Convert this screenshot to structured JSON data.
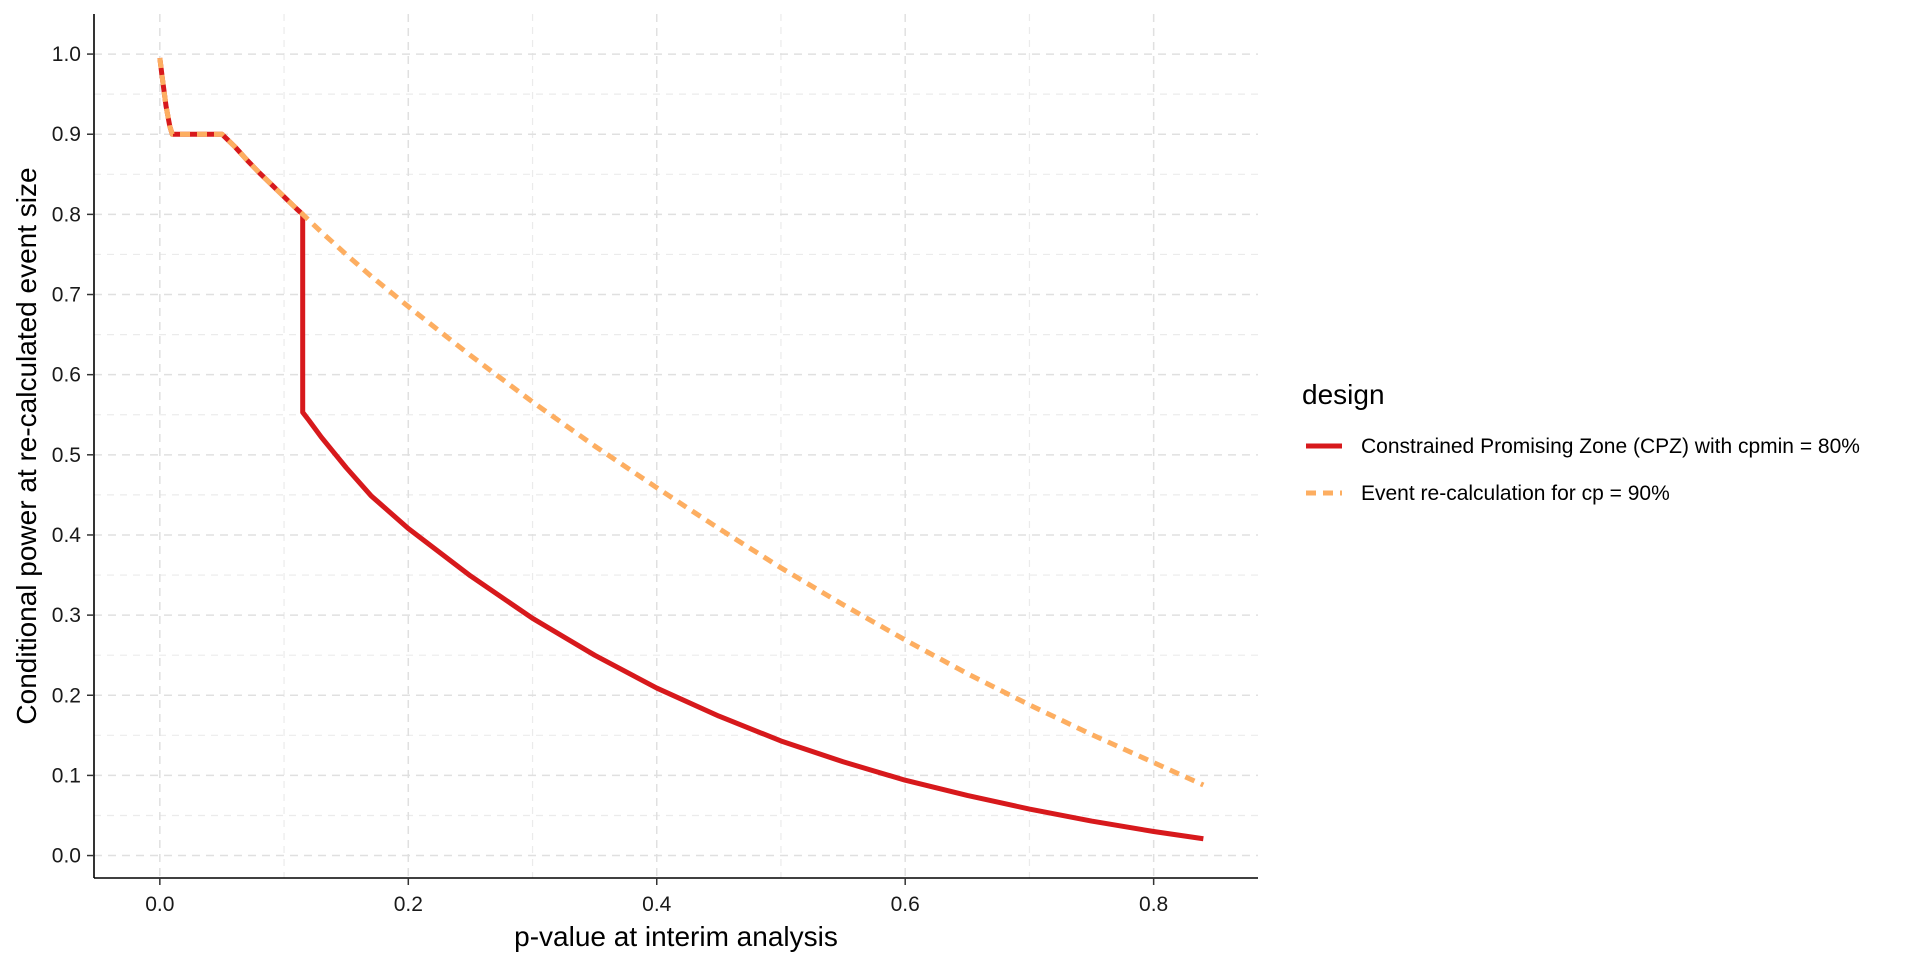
{
  "chart_data": {
    "type": "line",
    "xlabel": "p-value at interim analysis",
    "ylabel": "Conditional power at re-calculated event size",
    "xlim": [
      -0.053,
      0.884
    ],
    "ylim": [
      -0.028,
      1.05
    ],
    "x_ticks": [
      0.0,
      0.2,
      0.4,
      0.6,
      0.8
    ],
    "x_tick_labels": [
      "0.0",
      "0.2",
      "0.4",
      "0.6",
      "0.8"
    ],
    "y_ticks": [
      0.0,
      0.1,
      0.2,
      0.3,
      0.4,
      0.5,
      0.6,
      0.7,
      0.8,
      0.9,
      1.0
    ],
    "y_tick_labels": [
      "0.0",
      "0.1",
      "0.2",
      "0.3",
      "0.4",
      "0.5",
      "0.6",
      "0.7",
      "0.8",
      "0.9",
      "1.0"
    ],
    "grid": true,
    "legend": {
      "title": "design",
      "position": "right",
      "entries": [
        "Constrained Promising Zone (CPZ) with cpmin = 80%",
        "Event re-calculation for cp = 90%"
      ]
    },
    "series": [
      {
        "name": "Constrained Promising Zone (CPZ) with cpmin = 80%",
        "color": "#d7191c",
        "style": "solid",
        "x": [
          0.0,
          0.002,
          0.005,
          0.008,
          0.01,
          0.02,
          0.03,
          0.04,
          0.05,
          0.06,
          0.07,
          0.08,
          0.09,
          0.1,
          0.11,
          0.115,
          0.115,
          0.12,
          0.13,
          0.14,
          0.15,
          0.17,
          0.2,
          0.25,
          0.3,
          0.35,
          0.4,
          0.45,
          0.5,
          0.55,
          0.6,
          0.65,
          0.7,
          0.75,
          0.8,
          0.84
        ],
        "y": [
          0.995,
          0.97,
          0.935,
          0.91,
          0.9,
          0.9,
          0.9,
          0.9,
          0.9,
          0.885,
          0.868,
          0.852,
          0.837,
          0.822,
          0.807,
          0.8,
          0.553,
          0.543,
          0.522,
          0.503,
          0.484,
          0.449,
          0.408,
          0.349,
          0.296,
          0.25,
          0.209,
          0.174,
          0.143,
          0.117,
          0.094,
          0.075,
          0.058,
          0.043,
          0.03,
          0.021
        ]
      },
      {
        "name": "Event re-calculation for cp = 90%",
        "color": "#fdae61",
        "style": "dashed",
        "x": [
          0.0,
          0.002,
          0.005,
          0.008,
          0.01,
          0.02,
          0.03,
          0.04,
          0.05,
          0.06,
          0.07,
          0.08,
          0.09,
          0.1,
          0.11,
          0.115,
          0.13,
          0.15,
          0.17,
          0.2,
          0.25,
          0.3,
          0.35,
          0.4,
          0.45,
          0.5,
          0.55,
          0.6,
          0.65,
          0.7,
          0.75,
          0.8,
          0.84
        ],
        "y": [
          0.995,
          0.97,
          0.935,
          0.91,
          0.9,
          0.9,
          0.9,
          0.9,
          0.9,
          0.885,
          0.868,
          0.852,
          0.837,
          0.822,
          0.807,
          0.8,
          0.778,
          0.75,
          0.723,
          0.685,
          0.624,
          0.566,
          0.511,
          0.459,
          0.408,
          0.359,
          0.313,
          0.269,
          0.227,
          0.188,
          0.151,
          0.116,
          0.088
        ]
      }
    ]
  }
}
